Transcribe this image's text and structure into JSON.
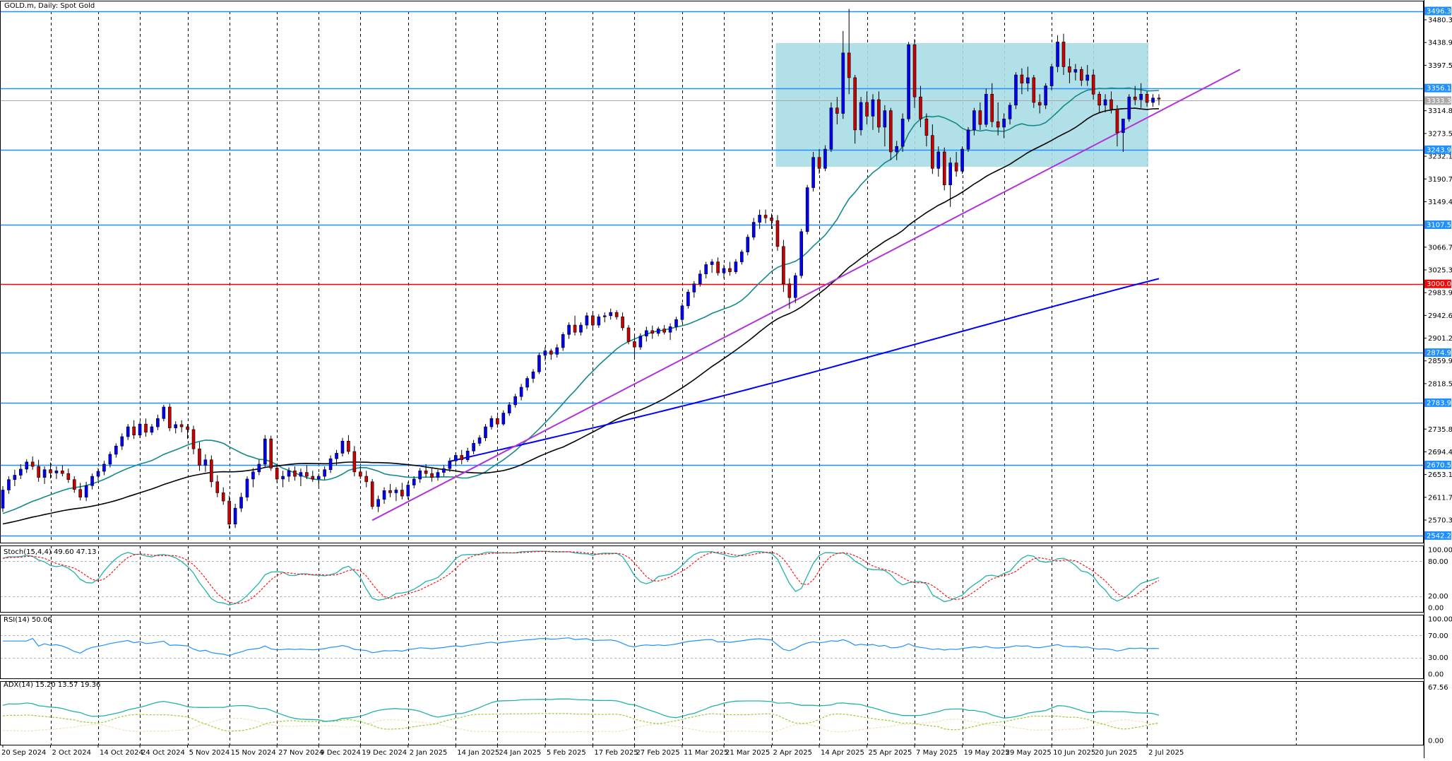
{
  "chart_data": {
    "type": "candlestick",
    "symbol": "GOLD.m",
    "timeframe": "Daily",
    "description": "Spot Gold",
    "y_ticks": [
      "3480.31",
      "3438.95",
      "3397.59",
      "3356.23",
      "3314.87",
      "3273.51",
      "3232.15",
      "3190.79",
      "3149.43",
      "3108.07",
      "3066.71",
      "3025.35",
      "2983.99",
      "2942.63",
      "2901.27",
      "2859.91",
      "2818.55",
      "2777.19",
      "2735.83",
      "2694.47",
      "2653.11",
      "2611.75",
      "2570.39"
    ],
    "y_ticks_visible": [
      "3480.31",
      "3438.95",
      "3397.59",
      "3314.87",
      "3273.51",
      "3232.15",
      "3190.79",
      "3149.43",
      "3066.71",
      "3025.35",
      "2983.99",
      "2942.63",
      "2901.27",
      "2859.91",
      "2818.55",
      "2735.83",
      "2694.47",
      "2653.11",
      "2611.75",
      "2570.39"
    ],
    "x_labels": [
      "20 Sep 2024",
      "2 Oct 2024",
      "14 Oct 2024",
      "24 Oct 2024",
      "5 Nov 2024",
      "15 Nov 2024",
      "27 Nov 2024",
      "9 Dec 2024",
      "19 Dec 2024",
      "2 Jan 2025",
      "14 Jan 2025",
      "24 Jan 2025",
      "5 Feb 2025",
      "17 Feb 2025",
      "27 Feb 2025",
      "11 Mar 2025",
      "21 Mar 2025",
      "2 Apr 2025",
      "14 Apr 2025",
      "25 Apr 2025",
      "7 May 2025",
      "19 May 2025",
      "29 May 2025",
      "10 Jun 2025",
      "20 Jun 2025",
      "2 Jul 2025"
    ],
    "levels": [
      {
        "price": 3496.33,
        "label": "3496.33",
        "color": "#1e90ff"
      },
      {
        "price": 3356.1,
        "label": "3356.10",
        "color": "#1e90ff"
      },
      {
        "price": 3243.99,
        "label": "3243.99",
        "color": "#1e90ff"
      },
      {
        "price": 3107.57,
        "label": "3107.57",
        "color": "#1e90ff"
      },
      {
        "price": 3000.0,
        "label": "3000.00",
        "color": "#ff0000"
      },
      {
        "price": 2874.92,
        "label": "2874.92",
        "color": "#1e90ff"
      },
      {
        "price": 2783.9,
        "label": "2783.90",
        "color": "#1e90ff"
      },
      {
        "price": 2670.59,
        "label": "2670.59",
        "color": "#1e90ff"
      },
      {
        "price": 2542.21,
        "label": "2542.21",
        "color": "#1e90ff"
      }
    ],
    "current_price": {
      "price": 3333.37,
      "label": "3333.37"
    },
    "range_box": {
      "price_top": 3438,
      "price_bottom": 3213,
      "start": "2 Apr 2025",
      "end": "8 Jul 2025",
      "color": "#aadde6"
    },
    "trendline": {
      "from": {
        "date": "19 Dec 2024",
        "price": 2570
      },
      "to": {
        "date": "~20 Jul 2025",
        "price": 3390
      },
      "color": "#b232d8"
    },
    "candles": [
      [
        2592,
        2632,
        2585,
        2625
      ],
      [
        2625,
        2650,
        2618,
        2644
      ],
      [
        2644,
        2662,
        2632,
        2652
      ],
      [
        2652,
        2672,
        2645,
        2663
      ],
      [
        2663,
        2681,
        2656,
        2676
      ],
      [
        2676,
        2686,
        2662,
        2668
      ],
      [
        2668,
        2680,
        2640,
        2648
      ],
      [
        2648,
        2668,
        2636,
        2662
      ],
      [
        2662,
        2675,
        2646,
        2656
      ],
      [
        2656,
        2668,
        2645,
        2660
      ],
      [
        2660,
        2670,
        2650,
        2655
      ],
      [
        2655,
        2664,
        2638,
        2644
      ],
      [
        2644,
        2650,
        2620,
        2626
      ],
      [
        2626,
        2638,
        2606,
        2612
      ],
      [
        2612,
        2640,
        2605,
        2633
      ],
      [
        2633,
        2655,
        2626,
        2650
      ],
      [
        2650,
        2665,
        2642,
        2659
      ],
      [
        2659,
        2678,
        2652,
        2672
      ],
      [
        2672,
        2695,
        2666,
        2690
      ],
      [
        2690,
        2710,
        2684,
        2705
      ],
      [
        2705,
        2728,
        2698,
        2722
      ],
      [
        2722,
        2745,
        2716,
        2740
      ],
      [
        2740,
        2752,
        2718,
        2725
      ],
      [
        2725,
        2750,
        2720,
        2745
      ],
      [
        2745,
        2755,
        2722,
        2730
      ],
      [
        2730,
        2745,
        2725,
        2740
      ],
      [
        2740,
        2762,
        2734,
        2755
      ],
      [
        2755,
        2780,
        2750,
        2776
      ],
      [
        2776,
        2782,
        2732,
        2738
      ],
      [
        2738,
        2750,
        2728,
        2744
      ],
      [
        2744,
        2752,
        2730,
        2740
      ],
      [
        2740,
        2745,
        2718,
        2735
      ],
      [
        2735,
        2742,
        2690,
        2700
      ],
      [
        2700,
        2712,
        2660,
        2670
      ],
      [
        2670,
        2690,
        2658,
        2680
      ],
      [
        2680,
        2688,
        2630,
        2640
      ],
      [
        2640,
        2652,
        2612,
        2620
      ],
      [
        2620,
        2630,
        2598,
        2605
      ],
      [
        2605,
        2615,
        2555,
        2563
      ],
      [
        2563,
        2600,
        2556,
        2592
      ],
      [
        2592,
        2620,
        2585,
        2612
      ],
      [
        2612,
        2650,
        2605,
        2645
      ],
      [
        2645,
        2665,
        2630,
        2658
      ],
      [
        2658,
        2680,
        2652,
        2672
      ],
      [
        2672,
        2725,
        2665,
        2718
      ],
      [
        2718,
        2724,
        2660,
        2665
      ],
      [
        2665,
        2672,
        2638,
        2645
      ],
      [
        2645,
        2660,
        2630,
        2650
      ],
      [
        2650,
        2666,
        2640,
        2660
      ],
      [
        2660,
        2668,
        2642,
        2650
      ],
      [
        2650,
        2664,
        2632,
        2657
      ],
      [
        2657,
        2670,
        2645,
        2650
      ],
      [
        2650,
        2660,
        2640,
        2645
      ],
      [
        2645,
        2655,
        2632,
        2650
      ],
      [
        2650,
        2668,
        2644,
        2662
      ],
      [
        2662,
        2688,
        2656,
        2682
      ],
      [
        2682,
        2698,
        2670,
        2692
      ],
      [
        2692,
        2720,
        2686,
        2714
      ],
      [
        2714,
        2725,
        2690,
        2695
      ],
      [
        2695,
        2705,
        2650,
        2658
      ],
      [
        2658,
        2668,
        2645,
        2650
      ],
      [
        2650,
        2660,
        2630,
        2640
      ],
      [
        2640,
        2645,
        2590,
        2595
      ],
      [
        2595,
        2615,
        2585,
        2608
      ],
      [
        2608,
        2630,
        2600,
        2624
      ],
      [
        2624,
        2636,
        2612,
        2620
      ],
      [
        2620,
        2630,
        2605,
        2625
      ],
      [
        2625,
        2638,
        2608,
        2614
      ],
      [
        2614,
        2640,
        2608,
        2634
      ],
      [
        2634,
        2650,
        2628,
        2645
      ],
      [
        2645,
        2665,
        2638,
        2660
      ],
      [
        2660,
        2672,
        2648,
        2655
      ],
      [
        2655,
        2666,
        2640,
        2648
      ],
      [
        2648,
        2662,
        2642,
        2657
      ],
      [
        2657,
        2670,
        2650,
        2664
      ],
      [
        2664,
        2684,
        2658,
        2678
      ],
      [
        2678,
        2694,
        2670,
        2688
      ],
      [
        2688,
        2698,
        2672,
        2680
      ],
      [
        2680,
        2702,
        2676,
        2696
      ],
      [
        2696,
        2716,
        2690,
        2710
      ],
      [
        2710,
        2725,
        2705,
        2720
      ],
      [
        2720,
        2745,
        2714,
        2740
      ],
      [
        2740,
        2760,
        2735,
        2755
      ],
      [
        2755,
        2760,
        2738,
        2745
      ],
      [
        2745,
        2770,
        2742,
        2765
      ],
      [
        2765,
        2785,
        2760,
        2780
      ],
      [
        2780,
        2800,
        2775,
        2795
      ],
      [
        2795,
        2818,
        2788,
        2812
      ],
      [
        2812,
        2832,
        2806,
        2828
      ],
      [
        2828,
        2845,
        2820,
        2840
      ],
      [
        2840,
        2875,
        2836,
        2870
      ],
      [
        2870,
        2885,
        2860,
        2878
      ],
      [
        2878,
        2882,
        2862,
        2872
      ],
      [
        2872,
        2890,
        2866,
        2884
      ],
      [
        2884,
        2912,
        2878,
        2908
      ],
      [
        2908,
        2930,
        2900,
        2925
      ],
      [
        2925,
        2942,
        2906,
        2912
      ],
      [
        2912,
        2930,
        2906,
        2925
      ],
      [
        2925,
        2948,
        2918,
        2942
      ],
      [
        2942,
        2948,
        2918,
        2925
      ],
      [
        2925,
        2945,
        2920,
        2940
      ],
      [
        2940,
        2948,
        2930,
        2942
      ],
      [
        2942,
        2955,
        2935,
        2948
      ],
      [
        2948,
        2952,
        2935,
        2940
      ],
      [
        2940,
        2948,
        2915,
        2920
      ],
      [
        2920,
        2925,
        2890,
        2895
      ],
      [
        2895,
        2905,
        2862,
        2885
      ],
      [
        2885,
        2910,
        2880,
        2905
      ],
      [
        2905,
        2922,
        2895,
        2915
      ],
      [
        2915,
        2924,
        2900,
        2910
      ],
      [
        2910,
        2922,
        2905,
        2918
      ],
      [
        2918,
        2925,
        2908,
        2912
      ],
      [
        2912,
        2928,
        2898,
        2922
      ],
      [
        2922,
        2940,
        2915,
        2935
      ],
      [
        2935,
        2965,
        2930,
        2960
      ],
      [
        2960,
        2990,
        2955,
        2985
      ],
      [
        2985,
        3005,
        2975,
        3000
      ],
      [
        3000,
        3025,
        2995,
        3018
      ],
      [
        3018,
        3040,
        3010,
        3035
      ],
      [
        3035,
        3045,
        3020,
        3040
      ],
      [
        3040,
        3048,
        3015,
        3020
      ],
      [
        3020,
        3035,
        3010,
        3028
      ],
      [
        3028,
        3040,
        3015,
        3022
      ],
      [
        3022,
        3045,
        3018,
        3040
      ],
      [
        3040,
        3062,
        3035,
        3058
      ],
      [
        3058,
        3090,
        3052,
        3085
      ],
      [
        3085,
        3120,
        3080,
        3112
      ],
      [
        3112,
        3135,
        3100,
        3125
      ],
      [
        3125,
        3135,
        3110,
        3120
      ],
      [
        3120,
        3128,
        3100,
        3115
      ],
      [
        3115,
        3125,
        3060,
        3068
      ],
      [
        3068,
        3080,
        2985,
        3000
      ],
      [
        3000,
        3010,
        2955,
        2975
      ],
      [
        2975,
        3020,
        2965,
        3015
      ],
      [
        3015,
        3100,
        3010,
        3095
      ],
      [
        3095,
        3180,
        3090,
        3175
      ],
      [
        3175,
        3240,
        3168,
        3230
      ],
      [
        3230,
        3245,
        3200,
        3210
      ],
      [
        3210,
        3252,
        3205,
        3245
      ],
      [
        3245,
        3330,
        3240,
        3320
      ],
      [
        3320,
        3340,
        3290,
        3310
      ],
      [
        3310,
        3460,
        3300,
        3420
      ],
      [
        3420,
        3500,
        3345,
        3375
      ],
      [
        3375,
        3380,
        3255,
        3280
      ],
      [
        3280,
        3340,
        3270,
        3330
      ],
      [
        3330,
        3350,
        3290,
        3305
      ],
      [
        3305,
        3345,
        3280,
        3335
      ],
      [
        3335,
        3350,
        3275,
        3285
      ],
      [
        3285,
        3325,
        3250,
        3315
      ],
      [
        3315,
        3320,
        3225,
        3240
      ],
      [
        3240,
        3260,
        3225,
        3250
      ],
      [
        3250,
        3310,
        3240,
        3300
      ],
      [
        3300,
        3440,
        3295,
        3435
      ],
      [
        3435,
        3445,
        3320,
        3340
      ],
      [
        3340,
        3360,
        3285,
        3300
      ],
      [
        3300,
        3310,
        3250,
        3270
      ],
      [
        3270,
        3290,
        3200,
        3210
      ],
      [
        3210,
        3250,
        3195,
        3240
      ],
      [
        3240,
        3248,
        3170,
        3180
      ],
      [
        3180,
        3230,
        3140,
        3220
      ],
      [
        3220,
        3240,
        3195,
        3205
      ],
      [
        3205,
        3250,
        3200,
        3245
      ],
      [
        3245,
        3285,
        3240,
        3280
      ],
      [
        3280,
        3320,
        3270,
        3315
      ],
      [
        3315,
        3330,
        3280,
        3290
      ],
      [
        3290,
        3355,
        3285,
        3345
      ],
      [
        3345,
        3365,
        3285,
        3295
      ],
      [
        3295,
        3330,
        3270,
        3285
      ],
      [
        3285,
        3310,
        3265,
        3300
      ],
      [
        3300,
        3330,
        3290,
        3325
      ],
      [
        3325,
        3385,
        3318,
        3380
      ],
      [
        3380,
        3392,
        3345,
        3365
      ],
      [
        3365,
        3395,
        3350,
        3375
      ],
      [
        3375,
        3380,
        3320,
        3330
      ],
      [
        3330,
        3345,
        3310,
        3325
      ],
      [
        3325,
        3365,
        3318,
        3360
      ],
      [
        3360,
        3400,
        3352,
        3395
      ],
      [
        3395,
        3452,
        3385,
        3440
      ],
      [
        3440,
        3455,
        3380,
        3395
      ],
      [
        3395,
        3410,
        3365,
        3385
      ],
      [
        3385,
        3400,
        3370,
        3390
      ],
      [
        3390,
        3395,
        3360,
        3370
      ],
      [
        3370,
        3398,
        3360,
        3380
      ],
      [
        3380,
        3390,
        3335,
        3345
      ],
      [
        3345,
        3350,
        3310,
        3325
      ],
      [
        3325,
        3345,
        3312,
        3335
      ],
      [
        3335,
        3350,
        3310,
        3318
      ],
      [
        3318,
        3325,
        3250,
        3275
      ],
      [
        3275,
        3300,
        3240,
        3300
      ],
      [
        3300,
        3345,
        3295,
        3340
      ],
      [
        3340,
        3360,
        3325,
        3335
      ],
      [
        3335,
        3365,
        3320,
        3345
      ],
      [
        3345,
        3350,
        3322,
        3330
      ],
      [
        3330,
        3345,
        3322,
        3338
      ],
      [
        3338,
        3345,
        3325,
        3336
      ]
    ],
    "ma_fast": {
      "name": "",
      "color": "#138a8a"
    },
    "ma_slow": {
      "name": "",
      "color": "#000000"
    },
    "ma_long": {
      "name": "",
      "color": "#0000ff"
    },
    "stoch": {
      "label": "Stoch(15,4,4) 49.60 47.13",
      "ticks": [
        "100.00",
        "80.00",
        "20.00",
        "0.00"
      ],
      "levels": [
        80,
        20
      ],
      "k_color": "#20b2aa",
      "d_color": "#ff0000"
    },
    "rsi": {
      "label": "RSI(14) 50.06",
      "ticks": [
        "100.00",
        "70.00",
        "30.00",
        "0.00"
      ],
      "levels": [
        70,
        30
      ],
      "color": "#1e90ff"
    },
    "adx": {
      "label": "ADX(14) 15.20 13.57 19.36",
      "ticks": [
        "67.56",
        "0.00"
      ],
      "adx_color": "#20b2aa",
      "plus_color": "#9acd32",
      "minus_color": "#f5deb3"
    }
  }
}
